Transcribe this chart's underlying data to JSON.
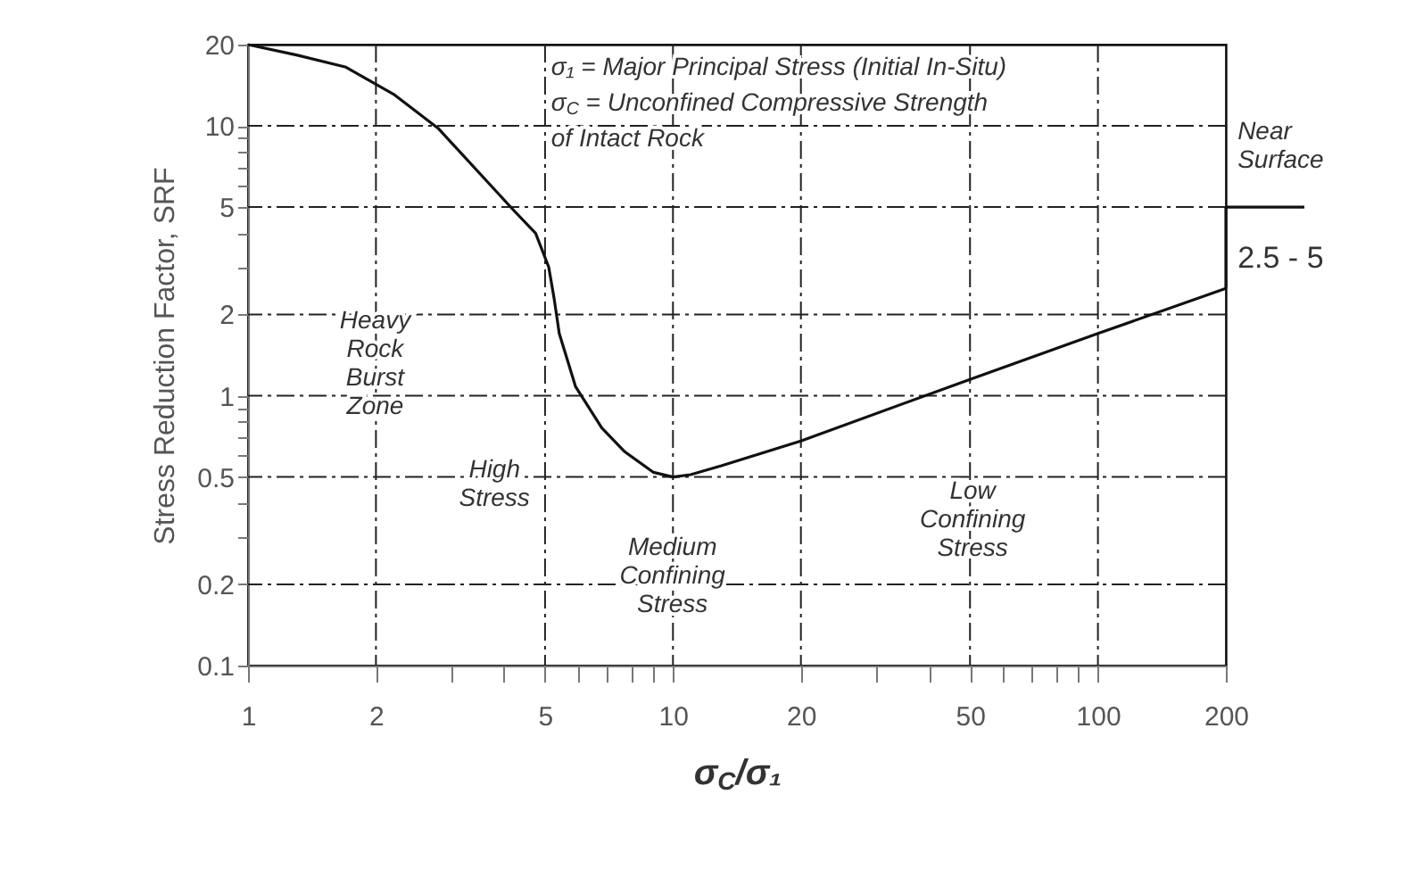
{
  "chart_data": {
    "type": "line",
    "xlabel": "σ$_{C}$/σ₁",
    "ylabel": "Stress Reduction Factor, SRF",
    "log": "xy",
    "xlim": [
      1,
      200
    ],
    "ylim": [
      0.1,
      20
    ],
    "xticks": [
      1,
      2,
      {
        "value": 3,
        "label": null
      },
      {
        "value": 4,
        "label": null
      },
      5,
      {
        "value": 6,
        "label": null
      },
      {
        "value": 7,
        "label": null
      },
      {
        "value": 8,
        "label": null
      },
      {
        "value": 9,
        "label": null
      },
      10,
      20,
      {
        "value": 30,
        "label": null
      },
      {
        "value": 40,
        "label": null
      },
      50,
      {
        "value": 60,
        "label": null
      },
      {
        "value": 70,
        "label": null
      },
      {
        "value": 80,
        "label": null
      },
      {
        "value": 90,
        "label": null
      },
      100,
      200
    ],
    "yticks": [
      0.1,
      0.2,
      {
        "value": 0.3,
        "label": null
      },
      {
        "value": 0.4,
        "label": null
      },
      0.5,
      {
        "value": 0.6,
        "label": null
      },
      {
        "value": 0.7,
        "label": null
      },
      {
        "value": 0.8,
        "label": null
      },
      {
        "value": 0.9,
        "label": null
      },
      1,
      2,
      {
        "value": 3,
        "label": null
      },
      {
        "value": 4,
        "label": null
      },
      5,
      {
        "value": 6,
        "label": null
      },
      {
        "value": 7,
        "label": null
      },
      {
        "value": 8,
        "label": null
      },
      {
        "value": 9,
        "label": null
      },
      10,
      20
    ],
    "grid": true,
    "line_style": "solid",
    "series": [
      {
        "color": "#111111",
        "x": [
          1,
          1.3,
          1.7,
          2.2,
          2.8,
          4.2,
          4.75,
          5.1,
          5.25,
          5.4,
          5.9,
          6.8,
          7.7,
          9,
          10,
          11,
          13,
          20,
          50,
          100,
          200
        ],
        "values": [
          20,
          18.3,
          16.5,
          13.1,
          9.8,
          4.9,
          4,
          3,
          2.3,
          1.7,
          1.08,
          0.76,
          0.62,
          0.52,
          0.5,
          0.51,
          0.55,
          0.68,
          1.15,
          1.7,
          2.5
        ]
      },
      {
        "color": "#111111",
        "x": [
          200,
          200
        ],
        "values": [
          2.5,
          5
        ]
      }
    ],
    "annotations": [
      "σ₁ = Major Principal Stress (Initial In-Situ)",
      "σ$_{C}$ = Unconfined Compressive Strength\nof Intact Rock",
      "Heavy\nRock\nBurst\nZone",
      "High\nStress",
      "Medium\nConfining\nStress",
      "Low\nConfining\nStress",
      "Near\nSurface",
      "2.5 - 5"
    ]
  }
}
